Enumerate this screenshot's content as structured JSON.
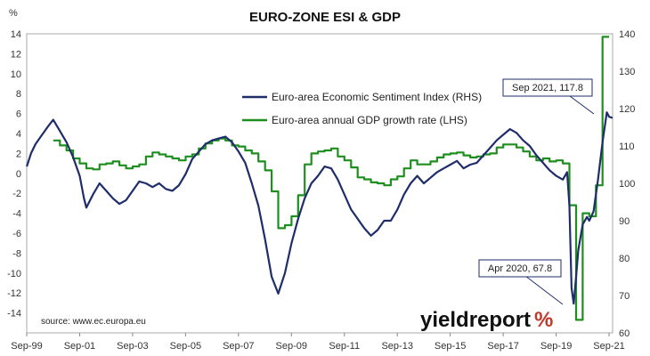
{
  "chart_data": {
    "type": "line",
    "title": "EURO-ZONE ESI & GDP",
    "y_left_unit": "%",
    "y_left_ticks": [
      14,
      12,
      10,
      8,
      6,
      4,
      2,
      0,
      -2,
      -4,
      -6,
      -8,
      -10,
      -12,
      -14
    ],
    "y_left_lim": [
      -16,
      14
    ],
    "y_right_ticks": [
      140,
      130,
      120,
      110,
      100,
      90,
      80,
      70,
      60
    ],
    "y_right_lim": [
      60,
      140
    ],
    "x_ticks": [
      "Sep-99",
      "Sep-01",
      "Sep-03",
      "Sep-05",
      "Sep-07",
      "Sep-09",
      "Sep-11",
      "Sep-13",
      "Sep-15",
      "Sep-17",
      "Sep-19",
      "Sep-21"
    ],
    "x_lim": [
      1999.667,
      2021.8
    ],
    "grid": false,
    "legend_position": "upper-right",
    "series": [
      {
        "name": "Euro-area Economic Sentiment Index (RHS)",
        "axis": "right",
        "color": "#1f2d6b",
        "points": [
          [
            1999.67,
            104.5
          ],
          [
            1999.83,
            108.0
          ],
          [
            2000.0,
            110.5
          ],
          [
            2000.25,
            113.0
          ],
          [
            2000.5,
            115.5
          ],
          [
            2000.67,
            117.0
          ],
          [
            2000.92,
            114.0
          ],
          [
            2001.17,
            111.0
          ],
          [
            2001.42,
            107.0
          ],
          [
            2001.67,
            102.0
          ],
          [
            2001.83,
            96.0
          ],
          [
            2001.92,
            93.5
          ],
          [
            2002.17,
            97.0
          ],
          [
            2002.42,
            100.0
          ],
          [
            2002.67,
            98.0
          ],
          [
            2002.92,
            96.0
          ],
          [
            2003.17,
            94.5
          ],
          [
            2003.42,
            95.5
          ],
          [
            2003.67,
            98.0
          ],
          [
            2003.92,
            100.5
          ],
          [
            2004.17,
            100.0
          ],
          [
            2004.42,
            99.0
          ],
          [
            2004.67,
            100.0
          ],
          [
            2004.92,
            98.5
          ],
          [
            2005.17,
            98.0
          ],
          [
            2005.42,
            99.5
          ],
          [
            2005.67,
            102.5
          ],
          [
            2005.92,
            106.5
          ],
          [
            2006.17,
            108.5
          ],
          [
            2006.42,
            110.5
          ],
          [
            2006.67,
            111.5
          ],
          [
            2006.92,
            112.0
          ],
          [
            2007.17,
            112.5
          ],
          [
            2007.42,
            111.0
          ],
          [
            2007.67,
            108.5
          ],
          [
            2007.92,
            105.5
          ],
          [
            2008.17,
            100.0
          ],
          [
            2008.42,
            94.0
          ],
          [
            2008.67,
            85.0
          ],
          [
            2008.92,
            75.0
          ],
          [
            2009.17,
            70.5
          ],
          [
            2009.42,
            76.0
          ],
          [
            2009.67,
            84.0
          ],
          [
            2009.92,
            90.5
          ],
          [
            2010.17,
            96.0
          ],
          [
            2010.42,
            100.0
          ],
          [
            2010.67,
            102.0
          ],
          [
            2010.92,
            104.5
          ],
          [
            2011.17,
            104.0
          ],
          [
            2011.42,
            101.0
          ],
          [
            2011.67,
            97.0
          ],
          [
            2011.92,
            93.0
          ],
          [
            2012.17,
            90.5
          ],
          [
            2012.42,
            88.0
          ],
          [
            2012.67,
            86.0
          ],
          [
            2012.92,
            87.5
          ],
          [
            2013.17,
            90.0
          ],
          [
            2013.42,
            90.0
          ],
          [
            2013.67,
            93.0
          ],
          [
            2013.92,
            97.0
          ],
          [
            2014.17,
            100.0
          ],
          [
            2014.42,
            102.0
          ],
          [
            2014.67,
            100.0
          ],
          [
            2014.92,
            101.5
          ],
          [
            2015.17,
            103.0
          ],
          [
            2015.42,
            104.0
          ],
          [
            2015.67,
            105.0
          ],
          [
            2015.92,
            106.0
          ],
          [
            2016.17,
            104.0
          ],
          [
            2016.42,
            105.0
          ],
          [
            2016.67,
            105.5
          ],
          [
            2016.92,
            107.5
          ],
          [
            2017.17,
            109.5
          ],
          [
            2017.42,
            111.5
          ],
          [
            2017.67,
            113.0
          ],
          [
            2017.92,
            114.5
          ],
          [
            2018.17,
            113.5
          ],
          [
            2018.42,
            111.5
          ],
          [
            2018.67,
            110.0
          ],
          [
            2018.92,
            107.5
          ],
          [
            2019.17,
            105.5
          ],
          [
            2019.42,
            103.5
          ],
          [
            2019.67,
            102.0
          ],
          [
            2019.92,
            101.0
          ],
          [
            2020.08,
            103.0
          ],
          [
            2020.17,
            94.0
          ],
          [
            2020.25,
            72.0
          ],
          [
            2020.33,
            67.8
          ],
          [
            2020.42,
            75.0
          ],
          [
            2020.5,
            82.0
          ],
          [
            2020.67,
            89.0
          ],
          [
            2020.83,
            91.0
          ],
          [
            2020.92,
            90.0
          ],
          [
            2021.08,
            92.5
          ],
          [
            2021.25,
            101.0
          ],
          [
            2021.42,
            111.0
          ],
          [
            2021.58,
            119.0
          ],
          [
            2021.67,
            117.8
          ],
          [
            2021.8,
            117.5
          ]
        ]
      },
      {
        "name": "Euro-area annual GDP growth rate (LHS)",
        "axis": "left",
        "color": "#1e8f1e",
        "points": [
          [
            2000.67,
            3.3
          ],
          [
            2000.92,
            2.8
          ],
          [
            2001.17,
            2.3
          ],
          [
            2001.42,
            1.5
          ],
          [
            2001.67,
            1.0
          ],
          [
            2001.92,
            0.5
          ],
          [
            2002.17,
            0.4
          ],
          [
            2002.42,
            0.9
          ],
          [
            2002.67,
            1.0
          ],
          [
            2002.92,
            1.2
          ],
          [
            2003.17,
            0.8
          ],
          [
            2003.42,
            0.5
          ],
          [
            2003.67,
            0.7
          ],
          [
            2003.92,
            0.9
          ],
          [
            2004.17,
            1.7
          ],
          [
            2004.42,
            2.1
          ],
          [
            2004.67,
            1.9
          ],
          [
            2004.92,
            1.7
          ],
          [
            2005.17,
            1.5
          ],
          [
            2005.42,
            1.3
          ],
          [
            2005.67,
            1.7
          ],
          [
            2005.92,
            1.9
          ],
          [
            2006.17,
            2.5
          ],
          [
            2006.42,
            3.0
          ],
          [
            2006.67,
            3.3
          ],
          [
            2006.92,
            3.5
          ],
          [
            2007.17,
            3.3
          ],
          [
            2007.42,
            2.8
          ],
          [
            2007.67,
            2.7
          ],
          [
            2007.92,
            2.3
          ],
          [
            2008.17,
            2.0
          ],
          [
            2008.42,
            1.2
          ],
          [
            2008.67,
            0.3
          ],
          [
            2008.92,
            -1.8
          ],
          [
            2009.17,
            -5.5
          ],
          [
            2009.42,
            -5.2
          ],
          [
            2009.67,
            -4.3
          ],
          [
            2009.92,
            -2.2
          ],
          [
            2010.17,
            0.9
          ],
          [
            2010.42,
            2.0
          ],
          [
            2010.67,
            2.2
          ],
          [
            2010.92,
            2.3
          ],
          [
            2011.17,
            2.5
          ],
          [
            2011.42,
            1.7
          ],
          [
            2011.67,
            1.3
          ],
          [
            2011.92,
            0.6
          ],
          [
            2012.17,
            -0.4
          ],
          [
            2012.42,
            -0.6
          ],
          [
            2012.67,
            -0.9
          ],
          [
            2012.92,
            -1.0
          ],
          [
            2013.17,
            -1.2
          ],
          [
            2013.42,
            -0.6
          ],
          [
            2013.67,
            -0.3
          ],
          [
            2013.92,
            0.5
          ],
          [
            2014.17,
            1.3
          ],
          [
            2014.42,
            0.9
          ],
          [
            2014.67,
            0.9
          ],
          [
            2014.92,
            1.2
          ],
          [
            2015.17,
            1.6
          ],
          [
            2015.42,
            1.9
          ],
          [
            2015.67,
            2.0
          ],
          [
            2015.92,
            2.1
          ],
          [
            2016.17,
            1.8
          ],
          [
            2016.42,
            1.6
          ],
          [
            2016.67,
            1.7
          ],
          [
            2016.92,
            1.9
          ],
          [
            2017.17,
            2.0
          ],
          [
            2017.42,
            2.6
          ],
          [
            2017.67,
            2.9
          ],
          [
            2017.92,
            2.9
          ],
          [
            2018.17,
            2.6
          ],
          [
            2018.42,
            2.2
          ],
          [
            2018.67,
            1.7
          ],
          [
            2018.92,
            1.3
          ],
          [
            2019.17,
            1.5
          ],
          [
            2019.42,
            1.2
          ],
          [
            2019.67,
            1.3
          ],
          [
            2019.92,
            1.0
          ],
          [
            2020.17,
            -3.2
          ],
          [
            2020.42,
            -14.7
          ],
          [
            2020.67,
            -4.0
          ],
          [
            2020.92,
            -4.3
          ],
          [
            2021.17,
            -1.2
          ],
          [
            2021.42,
            13.7
          ],
          [
            2021.67,
            13.7
          ]
        ]
      }
    ],
    "annotations": [
      {
        "label": "Sep 2021, 117.8",
        "x": 2021.67,
        "y": 117.8,
        "axis": "right"
      },
      {
        "label": "Apr 2020, 67.8",
        "x": 2020.33,
        "y": 67.8,
        "axis": "right"
      }
    ],
    "source": "source: www.ec.europa.eu",
    "brand": {
      "text_main": "yieldreport",
      "text_pct": "%",
      "main_color": "#111111",
      "pct_color": "#c0392b"
    }
  }
}
